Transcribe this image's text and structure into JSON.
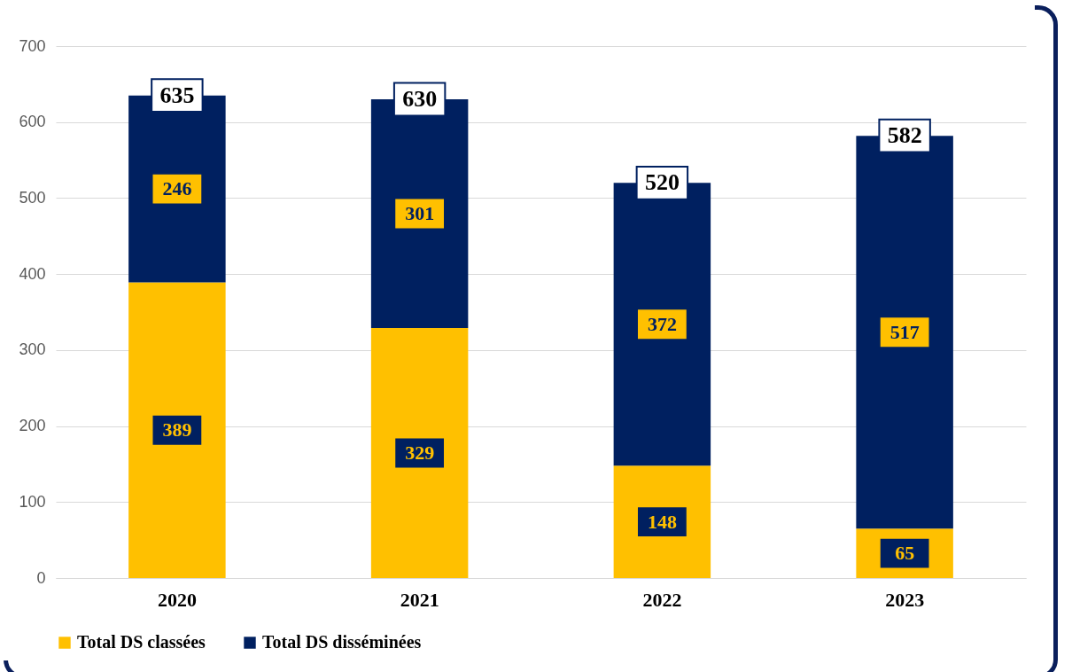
{
  "chart_data": {
    "type": "bar",
    "stacked": true,
    "categories": [
      "2020",
      "2021",
      "2022",
      "2023"
    ],
    "series": [
      {
        "name": "Total DS classées",
        "color": "#ffc000",
        "values": [
          389,
          329,
          148,
          65
        ]
      },
      {
        "name": "Total DS disséminées",
        "color": "#002060",
        "values": [
          246,
          301,
          372,
          517
        ]
      }
    ],
    "totals": [
      "635",
      "630",
      "520",
      "582"
    ],
    "ylim": [
      0,
      700
    ],
    "yticks": [
      0,
      100,
      200,
      300,
      400,
      500,
      600,
      700
    ],
    "grid": "y",
    "legend": "bottom",
    "data_labels": true
  }
}
